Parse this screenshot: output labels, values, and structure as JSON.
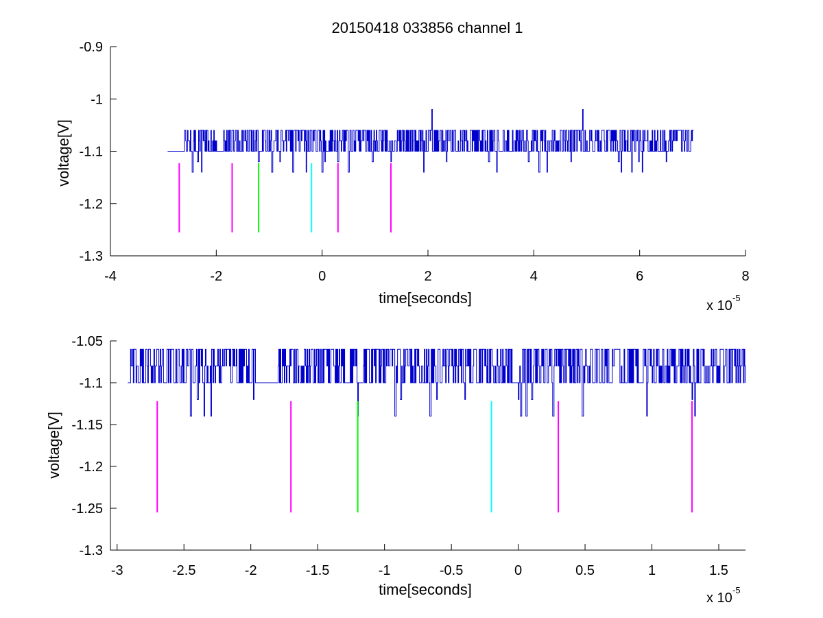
{
  "figure": {
    "title": "20150418 033856 channel 1"
  },
  "chart_data": [
    {
      "type": "line",
      "title": "20150418 033856 channel 1",
      "xlabel": "time[seconds]",
      "ylabel": "voltage[V]",
      "x_exponent_label": {
        "base": "x 10",
        "exponent": "-5"
      },
      "x_unit_scale": 1e-05,
      "xlim": [
        -4,
        8
      ],
      "ylim": [
        -1.3,
        -0.9
      ],
      "xticks": [
        -4,
        -2,
        0,
        2,
        4,
        6,
        8
      ],
      "yticks": [
        -1.3,
        -1.2,
        -1.1,
        -1,
        -0.9
      ],
      "xtick_labels": [
        "-4",
        "-2",
        "0",
        "2",
        "4",
        "6",
        "8"
      ],
      "ytick_labels": [
        "-1.3",
        "-1.2",
        "-1.1",
        "-1",
        "-0.9"
      ],
      "grid": false,
      "series": [
        {
          "color": "#0000cc",
          "x_start": -2.92,
          "x_end": 7.02,
          "levels": [
            -1.06,
            -1.08,
            -1.1,
            -1.12,
            -1.14
          ],
          "baseline": -1.1,
          "quiet_ranges": [
            [
              -2.92,
              -2.6
            ],
            [
              -2.0,
              -1.86
            ],
            [
              -1.2,
              -1.16
            ]
          ],
          "dips": [
            {
              "x": -2.45,
              "y": -1.14
            },
            {
              "x": -2.35,
              "y": -1.12
            },
            {
              "x": -2.28,
              "y": -1.14
            },
            {
              "x": -1.2,
              "y": -1.12
            },
            {
              "x": -0.95,
              "y": -1.14
            },
            {
              "x": -0.8,
              "y": -1.12
            },
            {
              "x": -0.55,
              "y": -1.14
            },
            {
              "x": -0.3,
              "y": -1.14
            },
            {
              "x": 0.0,
              "y": -1.14
            },
            {
              "x": 0.05,
              "y": -1.12
            },
            {
              "x": 0.3,
              "y": -1.12
            },
            {
              "x": 0.5,
              "y": -1.14
            },
            {
              "x": 0.95,
              "y": -1.12
            },
            {
              "x": 1.3,
              "y": -1.12
            },
            {
              "x": 1.92,
              "y": -1.14
            },
            {
              "x": 2.35,
              "y": -1.12
            },
            {
              "x": 3.15,
              "y": -1.12
            },
            {
              "x": 3.3,
              "y": -1.14
            },
            {
              "x": 3.9,
              "y": -1.12
            },
            {
              "x": 4.1,
              "y": -1.14
            },
            {
              "x": 4.25,
              "y": -1.14
            },
            {
              "x": 4.7,
              "y": -1.12
            },
            {
              "x": 5.6,
              "y": -1.12
            },
            {
              "x": 5.65,
              "y": -1.14
            },
            {
              "x": 5.85,
              "y": -1.14
            },
            {
              "x": 5.98,
              "y": -1.12
            },
            {
              "x": 6.05,
              "y": -1.14
            },
            {
              "x": 6.5,
              "y": -1.12
            }
          ],
          "spikes": [
            {
              "x": 2.07,
              "y": -1.02
            },
            {
              "x": 4.92,
              "y": -1.02
            }
          ]
        }
      ],
      "markers": [
        {
          "x": -2.7,
          "y1": -1.123,
          "y2": -1.255,
          "color": "#ff00ff"
        },
        {
          "x": -1.7,
          "y1": -1.123,
          "y2": -1.255,
          "color": "#ff00ff"
        },
        {
          "x": -1.2,
          "y1": -1.123,
          "y2": -1.255,
          "color": "#00ff00"
        },
        {
          "x": -0.2,
          "y1": -1.123,
          "y2": -1.255,
          "color": "#00ffff"
        },
        {
          "x": 0.3,
          "y1": -1.123,
          "y2": -1.255,
          "color": "#ff00ff"
        },
        {
          "x": 1.3,
          "y1": -1.123,
          "y2": -1.255,
          "color": "#ff00ff"
        }
      ]
    },
    {
      "type": "line",
      "xlabel": "time[seconds]",
      "ylabel": "voltage[V]",
      "x_exponent_label": {
        "base": "x 10",
        "exponent": "-5"
      },
      "x_unit_scale": 1e-05,
      "xlim": [
        -3.05,
        1.7
      ],
      "ylim": [
        -1.3,
        -1.05
      ],
      "xticks": [
        -3,
        -2.5,
        -2,
        -1.5,
        -1,
        -0.5,
        0,
        0.5,
        1,
        1.5
      ],
      "yticks": [
        -1.3,
        -1.25,
        -1.2,
        -1.15,
        -1.1,
        -1.05
      ],
      "xtick_labels": [
        "-3",
        "-2.5",
        "-2",
        "-1.5",
        "-1",
        "-0.5",
        "0",
        "0.5",
        "1",
        "1.5"
      ],
      "ytick_labels": [
        "-1.3",
        "-1.25",
        "-1.2",
        "-1.15",
        "-1.1",
        "-1.05"
      ],
      "grid": false,
      "series": [
        {
          "color": "#0000cc",
          "x_start": -2.92,
          "x_end": 1.7,
          "levels": [
            -1.06,
            -1.08,
            -1.1,
            -1.12,
            -1.14
          ],
          "baseline": -1.1,
          "quiet_ranges": [
            [
              -2.92,
              -2.9
            ],
            [
              -1.96,
              -1.8
            ],
            [
              -1.2,
              -1.16
            ],
            [
              -0.04,
              0.0
            ]
          ],
          "dips": [
            {
              "x": -2.45,
              "y": -1.14
            },
            {
              "x": -2.4,
              "y": -1.12
            },
            {
              "x": -2.35,
              "y": -1.14
            },
            {
              "x": -2.3,
              "y": -1.14
            },
            {
              "x": -1.98,
              "y": -1.12
            },
            {
              "x": -1.2,
              "y": -1.14
            },
            {
              "x": -0.92,
              "y": -1.14
            },
            {
              "x": -0.88,
              "y": -1.12
            },
            {
              "x": -0.66,
              "y": -1.14
            },
            {
              "x": -0.61,
              "y": -1.12
            },
            {
              "x": -0.4,
              "y": -1.12
            },
            {
              "x": 0.0,
              "y": -1.12
            },
            {
              "x": 0.02,
              "y": -1.14
            },
            {
              "x": 0.06,
              "y": -1.14
            },
            {
              "x": 0.1,
              "y": -1.12
            },
            {
              "x": 0.26,
              "y": -1.14
            },
            {
              "x": 0.48,
              "y": -1.14
            },
            {
              "x": 0.96,
              "y": -1.14
            },
            {
              "x": 1.3,
              "y": -1.12
            },
            {
              "x": 1.32,
              "y": -1.14
            }
          ],
          "spikes": []
        }
      ],
      "markers": [
        {
          "x": -2.7,
          "y1": -1.122,
          "y2": -1.255,
          "color": "#ff00ff"
        },
        {
          "x": -1.7,
          "y1": -1.122,
          "y2": -1.255,
          "color": "#ff00ff"
        },
        {
          "x": -1.2,
          "y1": -1.122,
          "y2": -1.255,
          "color": "#00ff00"
        },
        {
          "x": -0.2,
          "y1": -1.122,
          "y2": -1.255,
          "color": "#00ffff"
        },
        {
          "x": 0.3,
          "y1": -1.122,
          "y2": -1.255,
          "color": "#ff00ff"
        },
        {
          "x": 1.3,
          "y1": -1.122,
          "y2": -1.255,
          "color": "#ff00ff"
        }
      ]
    }
  ]
}
